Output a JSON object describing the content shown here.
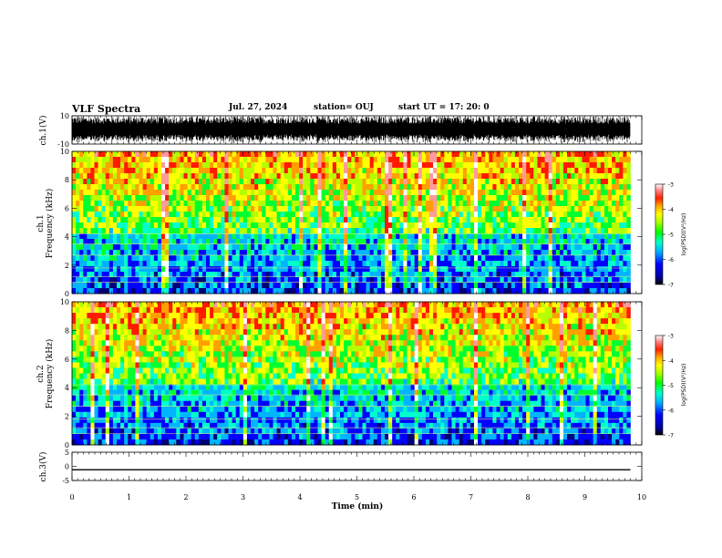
{
  "header": {
    "title": "VLF Spectra",
    "date": "Jul. 27, 2024",
    "station": "station= OUJ",
    "start": "start UT = 17: 20: 0"
  },
  "chart_data": [
    {
      "type": "line",
      "panel": "ch1-waveform",
      "ylabel": "ch.1(V)",
      "ylim": [
        -10,
        10
      ],
      "yticks": [
        "10",
        "-10"
      ],
      "xlim": [
        0,
        10
      ],
      "description_values": "dense broadband waveform spanning roughly -9 to 9 V over 0 to 9.8 min"
    },
    {
      "type": "heatmap",
      "panel": "ch1-spectrogram",
      "ylabel": "Frequency (kHz)",
      "channel_label": "ch.1",
      "ylim": [
        0,
        10
      ],
      "yticks": [
        "0",
        "2",
        "4",
        "6",
        "8",
        "10"
      ],
      "xlim": [
        0,
        10
      ],
      "data_extent_min": 9.8,
      "colorbar": {
        "label": "log(PSD)(V²/Hz)",
        "range": [
          -7,
          -3
        ],
        "ticks": [
          "-3",
          "-4",
          "-5",
          "-6",
          "-7"
        ]
      }
    },
    {
      "type": "heatmap",
      "panel": "ch2-spectrogram",
      "ylabel": "Frequency (kHz)",
      "channel_label": "ch.2",
      "ylim": [
        0,
        10
      ],
      "yticks": [
        "0",
        "2",
        "4",
        "6",
        "8",
        "10"
      ],
      "xlim": [
        0,
        10
      ],
      "data_extent_min": 9.8,
      "colorbar": {
        "label": "log(PSD)(V²/Hz)",
        "range": [
          -7,
          -3
        ],
        "ticks": [
          "-3",
          "-4",
          "-5",
          "-6",
          "-7"
        ]
      }
    },
    {
      "type": "line",
      "panel": "ch3-waveform",
      "ylabel": "ch.3(V)",
      "ylim": [
        -5,
        5
      ],
      "yticks": [
        "5",
        "0",
        "-5"
      ],
      "x": [
        0,
        9.8
      ],
      "y": [
        -1.2,
        -1.2
      ],
      "xlim": [
        0,
        10
      ],
      "xlabel": "Time (min)",
      "xticks": [
        "0",
        "1",
        "2",
        "3",
        "4",
        "5",
        "6",
        "7",
        "8",
        "9",
        "10"
      ]
    }
  ]
}
